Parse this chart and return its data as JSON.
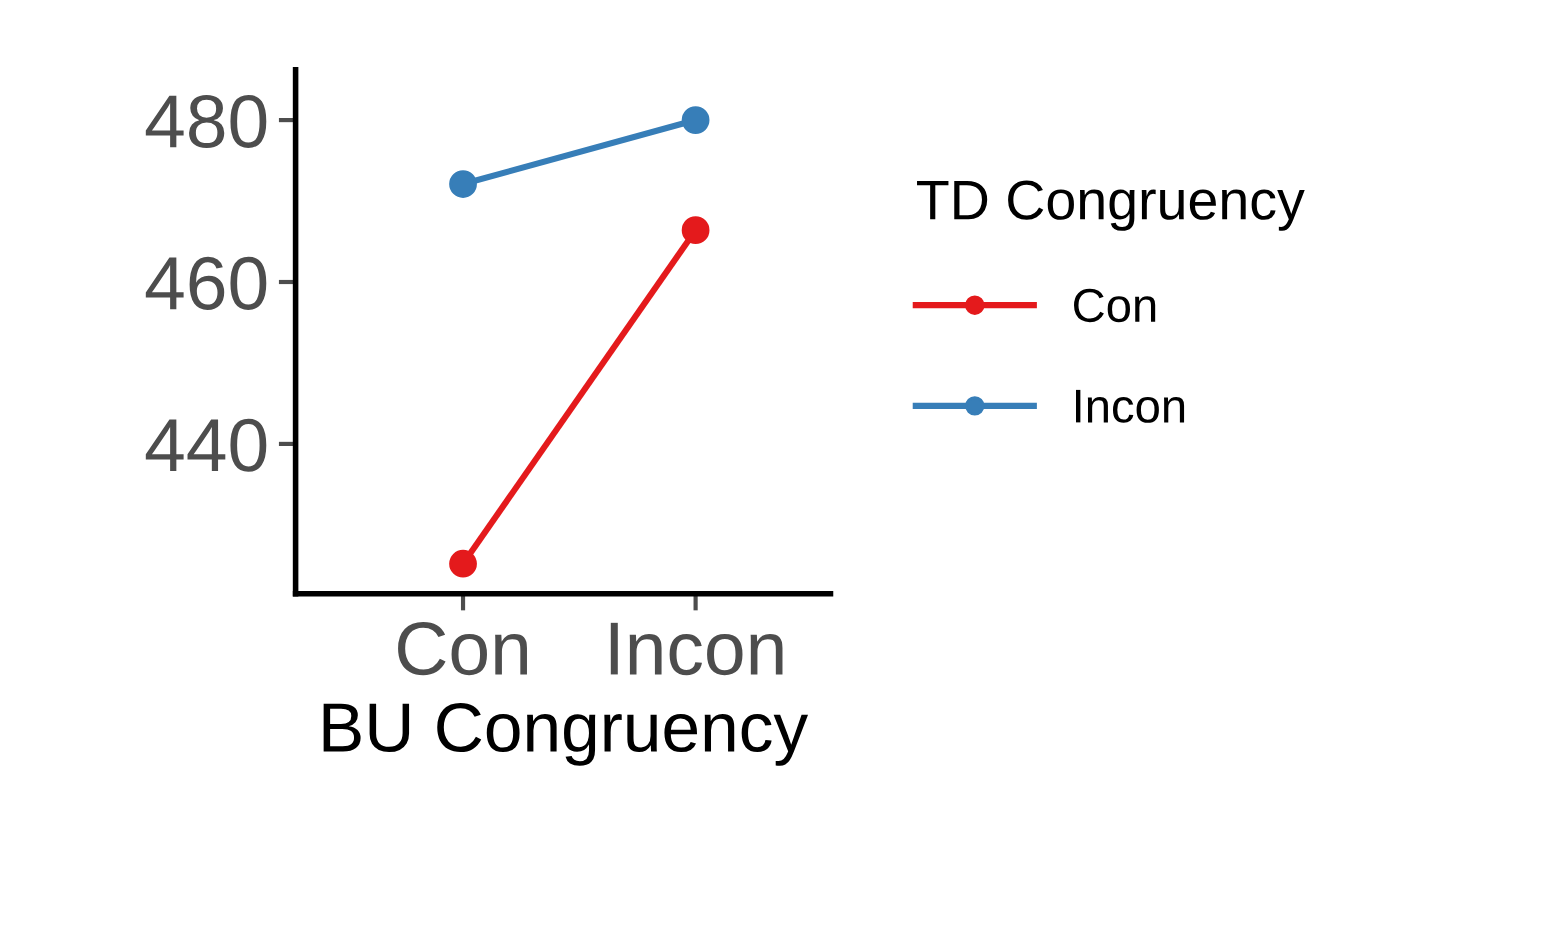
{
  "chart_data": {
    "type": "line",
    "xlabel": "BU Congruency",
    "legend_title": "TD Congruency",
    "categories": [
      "Con",
      "Incon"
    ],
    "series": [
      {
        "name": "Con",
        "color": "#e41a1c",
        "values": [
          425.2,
          466.4
        ]
      },
      {
        "name": "Incon",
        "color": "#377eb8",
        "values": [
          472.1,
          480.0
        ]
      }
    ],
    "ylim": [
      421.5,
      486.2
    ],
    "yticks": [
      440,
      460,
      480
    ],
    "grid": false,
    "legend": "right",
    "marker": "circle",
    "line_style": "solid"
  }
}
